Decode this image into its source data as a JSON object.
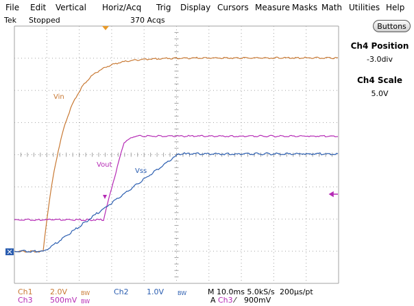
{
  "menu": [
    {
      "id": "file",
      "label": "File"
    },
    {
      "id": "edit",
      "label": "Edit"
    },
    {
      "id": "vertical",
      "label": "Vertical"
    },
    {
      "id": "horiz-acq",
      "label": "Horiz/Acq"
    },
    {
      "id": "trig",
      "label": "Trig"
    },
    {
      "id": "display",
      "label": "Display"
    },
    {
      "id": "cursors",
      "label": "Cursors"
    },
    {
      "id": "measure",
      "label": "Measure"
    },
    {
      "id": "masks",
      "label": "Masks"
    },
    {
      "id": "math",
      "label": "Math"
    },
    {
      "id": "utilities",
      "label": "Utilities"
    },
    {
      "id": "help",
      "label": "Help"
    }
  ],
  "status": {
    "brand": "Tek",
    "state": "Stopped",
    "acqs": "370 Acqs"
  },
  "right_panel": {
    "buttons_label": "Buttons",
    "ch4_position_title": "Ch4 Position",
    "ch4_position_value": "-3.0div",
    "ch4_scale_title": "Ch4 Scale",
    "ch4_scale_value": "5.0V"
  },
  "waveform_labels": {
    "vin": "Vin",
    "vout": "Vout",
    "vss": "Vss"
  },
  "readout": {
    "ch1_name": "Ch1",
    "ch1_scale": "2.0V",
    "ch1_bw": "BW",
    "ch2_name": "Ch2",
    "ch2_scale": "1.0V",
    "ch2_bw": "BW",
    "ch3_name": "Ch3",
    "ch3_scale": "500mV",
    "ch3_bw": "BW",
    "timebase": "M 10.0ms 5.0kS/s",
    "record": "200μs/pt",
    "trigger_prefix": "A",
    "trigger_channel": "Ch3",
    "trigger_slope": "⁄",
    "trigger_level": "900mV"
  },
  "colors": {
    "ch1": "#c87832",
    "ch2": "#2a5db0",
    "ch3": "#b52ab5",
    "graticule": "#a0a0a0",
    "trigger_marker": "#e89a2a",
    "ground_marker": "#2a5db0"
  }
}
